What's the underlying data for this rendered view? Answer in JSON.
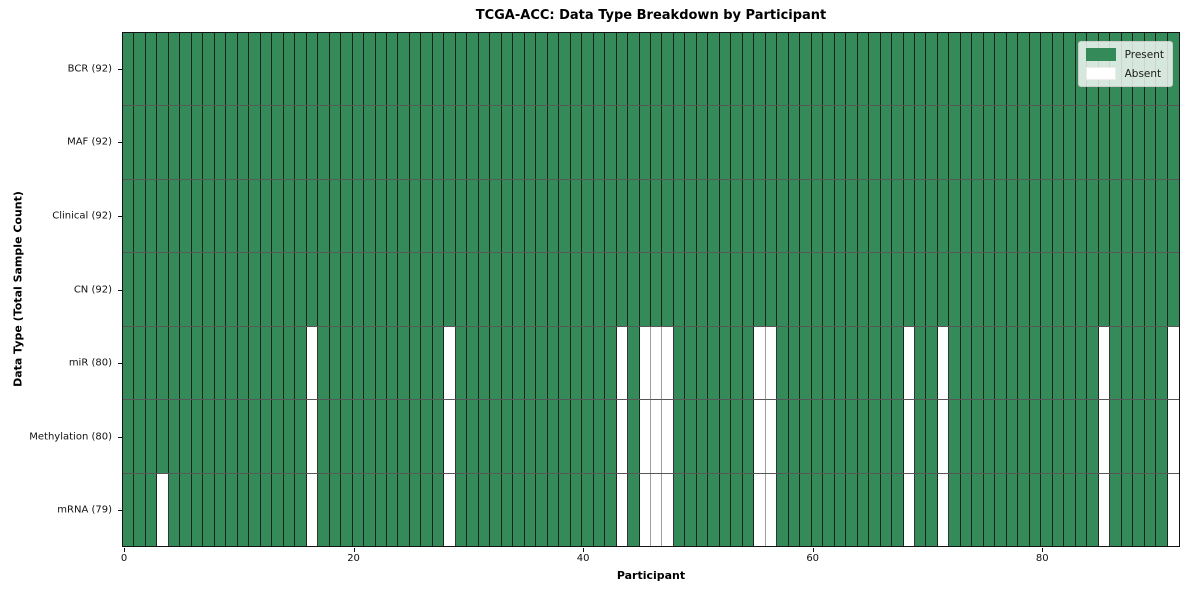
{
  "chart_data": {
    "type": "heatmap",
    "title": "TCGA-ACC: Data Type Breakdown by Participant",
    "xlabel": "Participant",
    "ylabel": "Data Type (Total Sample Count)",
    "n_participants": 92,
    "x_ticks": [
      0,
      20,
      40,
      60,
      80
    ],
    "grid": "cell-borders-on",
    "legend_position": "upper right",
    "colors": {
      "present": "#348a58",
      "absent": "#ffffff"
    },
    "legend": [
      {
        "label": "Present",
        "color": "#348a58"
      },
      {
        "label": "Absent",
        "color": "#ffffff"
      }
    ],
    "rows": [
      {
        "label": "BCR (92)",
        "data_type": "BCR",
        "present_count": 92,
        "absent_participants": []
      },
      {
        "label": "MAF (92)",
        "data_type": "MAF",
        "present_count": 92,
        "absent_participants": []
      },
      {
        "label": "Clinical (92)",
        "data_type": "Clinical",
        "present_count": 92,
        "absent_participants": []
      },
      {
        "label": "CN (92)",
        "data_type": "CN",
        "present_count": 92,
        "absent_participants": []
      },
      {
        "label": "miR (80)",
        "data_type": "miR",
        "present_count": 80,
        "absent_participants": [
          16,
          28,
          43,
          45,
          46,
          47,
          55,
          56,
          68,
          71,
          85,
          91
        ]
      },
      {
        "label": "Methylation (80)",
        "data_type": "Methylation",
        "present_count": 80,
        "absent_participants": [
          16,
          28,
          43,
          45,
          46,
          47,
          55,
          56,
          68,
          71,
          85,
          91
        ]
      },
      {
        "label": "mRNA (79)",
        "data_type": "mRNA",
        "present_count": 79,
        "absent_participants": [
          3,
          16,
          28,
          43,
          45,
          46,
          47,
          55,
          56,
          68,
          71,
          85,
          91
        ]
      }
    ]
  }
}
